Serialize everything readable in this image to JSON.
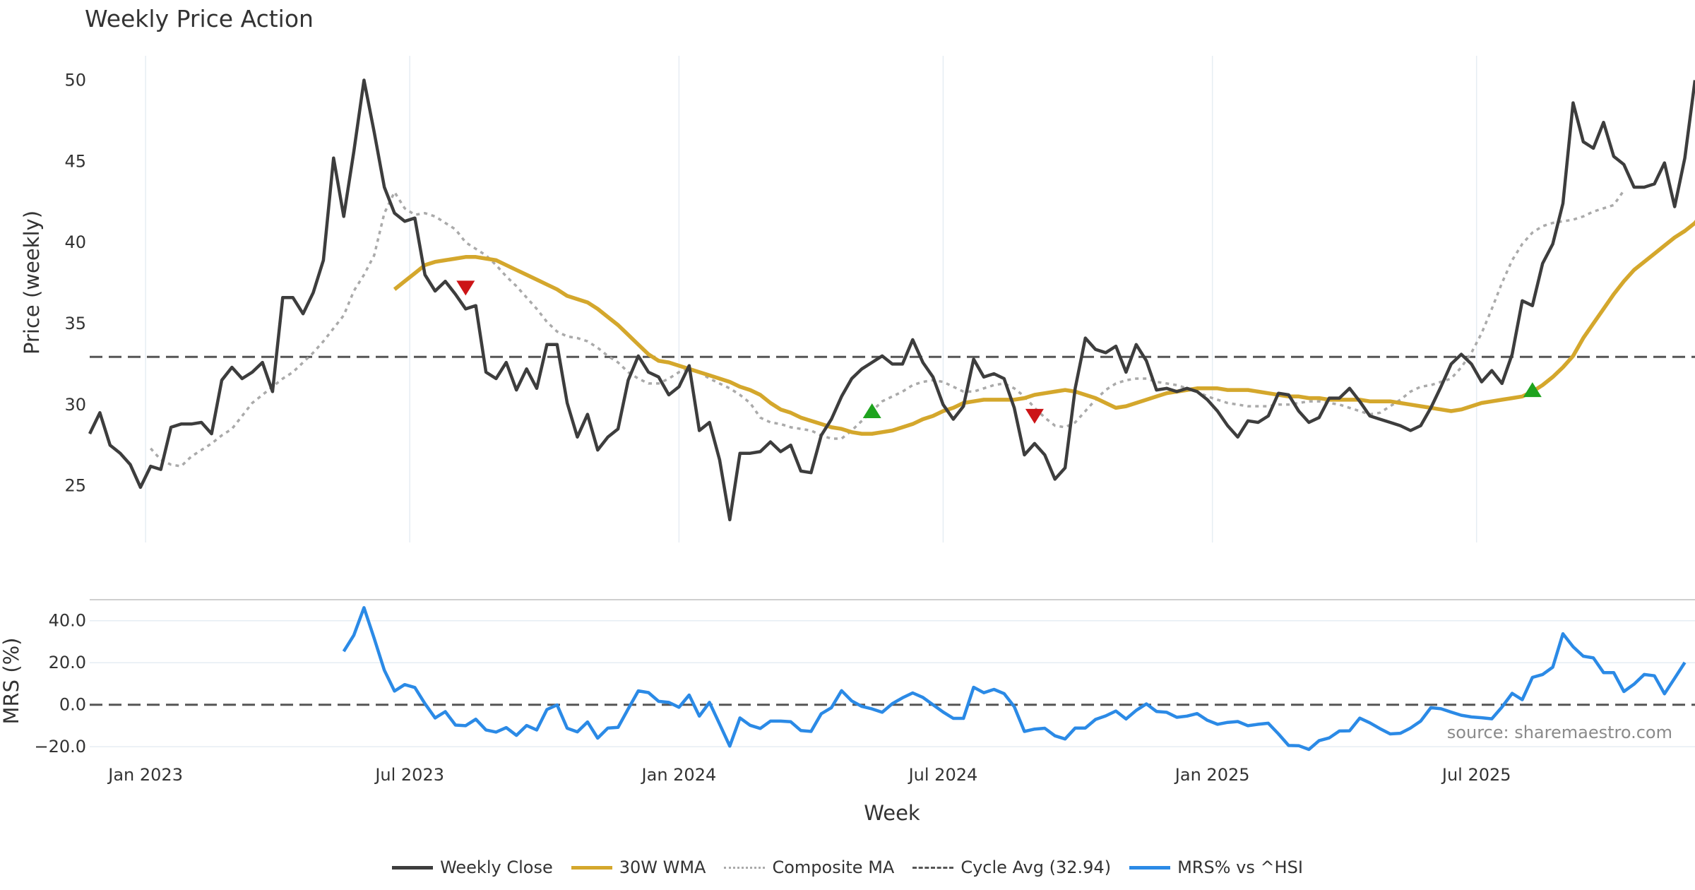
{
  "chart_data": {
    "type": "line",
    "title": "Weekly Price Action",
    "source_text": "source: sharemaestro.com",
    "xlabel": "Week",
    "x_tick_labels": [
      "Jan 2023",
      "Jul 2023",
      "Jan 2024",
      "Jul 2024",
      "Jan 2025",
      "Jul 2025"
    ],
    "price_panel": {
      "ylabel": "Price (weekly)",
      "ylim": [
        21.5,
        51.5
      ],
      "y_ticks": [
        25,
        30,
        35,
        40,
        45,
        50
      ],
      "cycle_avg": 32.94,
      "weekly_close": [
        28.2,
        29.5,
        27.5,
        27.0,
        26.3,
        24.9,
        26.2,
        26.0,
        28.6,
        28.8,
        28.8,
        28.9,
        28.2,
        31.5,
        32.3,
        31.6,
        32.0,
        32.6,
        30.8,
        36.6,
        36.6,
        35.6,
        36.9,
        38.9,
        45.2,
        41.6,
        45.6,
        50.0,
        46.8,
        43.4,
        41.8,
        41.3,
        41.5,
        38.0,
        37.0,
        37.6,
        36.8,
        35.9,
        36.1,
        32.0,
        31.6,
        32.6,
        30.9,
        32.2,
        31.0,
        33.7,
        33.7,
        30.1,
        28.0,
        29.4,
        27.2,
        28.0,
        28.5,
        31.5,
        33.0,
        32.0,
        31.7,
        30.6,
        31.1,
        32.4,
        28.4,
        28.9,
        26.6,
        22.9,
        27.0,
        27.0,
        27.1,
        27.7,
        27.1,
        27.5,
        25.9,
        25.8,
        28.1,
        29.1,
        30.5,
        31.6,
        32.2,
        32.6,
        33.0,
        32.5,
        32.5,
        34.0,
        32.6,
        31.7,
        30.0,
        29.1,
        29.9,
        32.8,
        31.7,
        31.9,
        31.6,
        29.8,
        26.9,
        27.6,
        26.9,
        25.4,
        26.1,
        31.0,
        34.1,
        33.4,
        33.2,
        33.6,
        32.0,
        33.7,
        32.7,
        30.9,
        31.0,
        30.8,
        31.0,
        30.8,
        30.3,
        29.6,
        28.7,
        28.0,
        29.0,
        28.9,
        29.3,
        30.7,
        30.6,
        29.6,
        28.9,
        29.2,
        30.4,
        30.4,
        31.0,
        30.2,
        29.3,
        29.1,
        28.9,
        28.7,
        28.4,
        28.7,
        29.8,
        31.1,
        32.5,
        33.1,
        32.5,
        31.4,
        32.1,
        31.3,
        33.1,
        36.4,
        36.1,
        38.7,
        39.9,
        42.4,
        48.6,
        46.2,
        45.8,
        47.4,
        45.3,
        44.8,
        43.4,
        43.4,
        43.6,
        44.9,
        42.2,
        45.2,
        50.0
      ],
      "wma_30": {
        "start_week": 30,
        "values": [
          37.1,
          37.6,
          38.1,
          38.6,
          38.8,
          38.9,
          39.0,
          39.1,
          39.1,
          39.0,
          38.9,
          38.6,
          38.3,
          38.0,
          37.7,
          37.4,
          37.1,
          36.7,
          36.5,
          36.3,
          35.9,
          35.4,
          34.9,
          34.3,
          33.7,
          33.1,
          32.7,
          32.6,
          32.4,
          32.2,
          32.0,
          31.8,
          31.6,
          31.4,
          31.1,
          30.9,
          30.6,
          30.1,
          29.7,
          29.5,
          29.2,
          29.0,
          28.8,
          28.6,
          28.5,
          28.3,
          28.2,
          28.2,
          28.3,
          28.4,
          28.6,
          28.8,
          29.1,
          29.3,
          29.6,
          29.8,
          30.1,
          30.2,
          30.3,
          30.3,
          30.3,
          30.3,
          30.4,
          30.6,
          30.7,
          30.8,
          30.9,
          30.8,
          30.6,
          30.4,
          30.1,
          29.8,
          29.9,
          30.1,
          30.3,
          30.5,
          30.7,
          30.8,
          30.9,
          31.0,
          31.0,
          31.0,
          30.9,
          30.9,
          30.9,
          30.8,
          30.7,
          30.6,
          30.5,
          30.5,
          30.4,
          30.4,
          30.3,
          30.3,
          30.3,
          30.3,
          30.2,
          30.2,
          30.2,
          30.1,
          30.0,
          29.9,
          29.8,
          29.7,
          29.6,
          29.7,
          29.9,
          30.1,
          30.2,
          30.3,
          30.4,
          30.5,
          30.8,
          31.2,
          31.7,
          32.3,
          33.0,
          34.1,
          35.0,
          35.9,
          36.8,
          37.6,
          38.3,
          38.8,
          39.3,
          39.8,
          40.3,
          40.7,
          41.2,
          42.0
        ]
      },
      "composite_ma": {
        "start_week": 6,
        "values": [
          27.3,
          26.6,
          26.3,
          26.2,
          26.8,
          27.2,
          27.6,
          28.1,
          28.5,
          29.3,
          30.1,
          30.6,
          31.1,
          31.6,
          32.0,
          32.6,
          33.2,
          33.9,
          34.7,
          35.5,
          37.0,
          38.0,
          39.2,
          41.8,
          43.1,
          42.1,
          41.7,
          41.8,
          41.6,
          41.2,
          40.8,
          40.0,
          39.6,
          39.2,
          38.6,
          37.9,
          37.3,
          36.6,
          35.9,
          35.1,
          34.5,
          34.2,
          34.1,
          33.9,
          33.5,
          33.0,
          32.6,
          32.0,
          31.6,
          31.3,
          31.3,
          31.6,
          32.0,
          32.2,
          32.0,
          31.6,
          31.3,
          31.0,
          30.6,
          30.1,
          29.2,
          28.9,
          28.8,
          28.6,
          28.5,
          28.4,
          28.1,
          27.9,
          27.9,
          28.4,
          29.0,
          29.6,
          30.2,
          30.5,
          30.8,
          31.2,
          31.4,
          31.5,
          31.4,
          31.1,
          30.8,
          30.8,
          31.0,
          31.2,
          31.3,
          31.0,
          30.5,
          29.8,
          29.2,
          28.7,
          28.6,
          28.9,
          29.6,
          30.3,
          30.9,
          31.3,
          31.5,
          31.6,
          31.6,
          31.4,
          31.3,
          31.2,
          31.0,
          30.8,
          30.5,
          30.3,
          30.1,
          30.0,
          29.9,
          29.9,
          29.9,
          30.0,
          30.0,
          30.1,
          30.2,
          30.2,
          30.1,
          30.0,
          29.8,
          29.6,
          29.4,
          29.5,
          29.9,
          30.3,
          30.8,
          31.1,
          31.2,
          31.4,
          31.6,
          32.3,
          33.2,
          34.4,
          35.9,
          37.5,
          38.9,
          39.9,
          40.6,
          41.0,
          41.2,
          41.3,
          41.4,
          41.6,
          41.9,
          42.1,
          42.3,
          43.2
        ]
      },
      "signals": [
        {
          "type": "sell",
          "week": 37,
          "value": 37.2
        },
        {
          "type": "buy",
          "week": 77,
          "value": 29.6
        },
        {
          "type": "sell",
          "week": 93,
          "value": 29.3
        },
        {
          "type": "buy",
          "week": 142,
          "value": 30.9
        }
      ]
    },
    "mrs_panel": {
      "ylabel": "MRS (%)",
      "ylim": [
        -27,
        50
      ],
      "y_ticks": [
        -20,
        0,
        20,
        40
      ],
      "y_tick_labels": [
        "−20.0",
        "0.0",
        "20.0",
        "40.0"
      ],
      "start_week": 25,
      "values": [
        25.4,
        33.1,
        46.2,
        31.6,
        16.4,
        6.5,
        9.6,
        8.2,
        0.5,
        -6.3,
        -3.3,
        -9.7,
        -10.0,
        -6.9,
        -12.0,
        -13.0,
        -10.9,
        -14.6,
        -9.9,
        -12.0,
        -2.3,
        -0.1,
        -11.2,
        -12.9,
        -8.2,
        -15.9,
        -11.1,
        -10.8,
        -2.0,
        6.6,
        5.8,
        1.6,
        1.1,
        -1.2,
        4.6,
        -5.4,
        1.1,
        -9.2,
        -19.7,
        -6.3,
        -9.8,
        -11.3,
        -7.8,
        -7.8,
        -8.1,
        -12.3,
        -12.7,
        -4.3,
        -1.4,
        6.7,
        1.8,
        -0.8,
        -2.0,
        -3.6,
        0.5,
        3.3,
        5.6,
        3.5,
        0.0,
        -3.5,
        -6.5,
        -6.5,
        8.3,
        5.7,
        7.3,
        5.3,
        -0.9,
        -12.7,
        -11.6,
        -11.2,
        -14.8,
        -16.3,
        -11.1,
        -11.1,
        -7.0,
        -5.3,
        -3.0,
        -6.8,
        -2.7,
        0.4,
        -3.2,
        -3.6,
        -6.0,
        -5.4,
        -4.2,
        -7.4,
        -9.3,
        -8.4,
        -8.0,
        -10.0,
        -9.3,
        -8.8,
        -13.9,
        -19.4,
        -19.5,
        -21.3,
        -17.1,
        -15.8,
        -12.5,
        -12.4,
        -6.4,
        -8.6,
        -11.4,
        -13.9,
        -13.6,
        -11.1,
        -7.8,
        -1.4,
        -1.9,
        -3.5,
        -5.0,
        -5.8,
        -6.2,
        -6.7,
        -1.1,
        5.4,
        2.4,
        13.0,
        14.4,
        17.9,
        33.8,
        27.6,
        23.1,
        22.3,
        15.3,
        15.3,
        6.3,
        9.8,
        14.4,
        13.8,
        5.2,
        12.6,
        20.1
      ]
    },
    "legend": [
      {
        "label": "Weekly Close",
        "color": "#3d3d3d",
        "style": "solid"
      },
      {
        "label": "30W WMA",
        "color": "#d4a72c",
        "style": "solid"
      },
      {
        "label": "Composite MA",
        "color": "#aaaaaa",
        "style": "dotted"
      },
      {
        "label": "Cycle Avg (32.94)",
        "color": "#555555",
        "style": "dashed"
      },
      {
        "label": "MRS% vs ^HSI",
        "color": "#2b8ae6",
        "style": "solid"
      }
    ]
  }
}
